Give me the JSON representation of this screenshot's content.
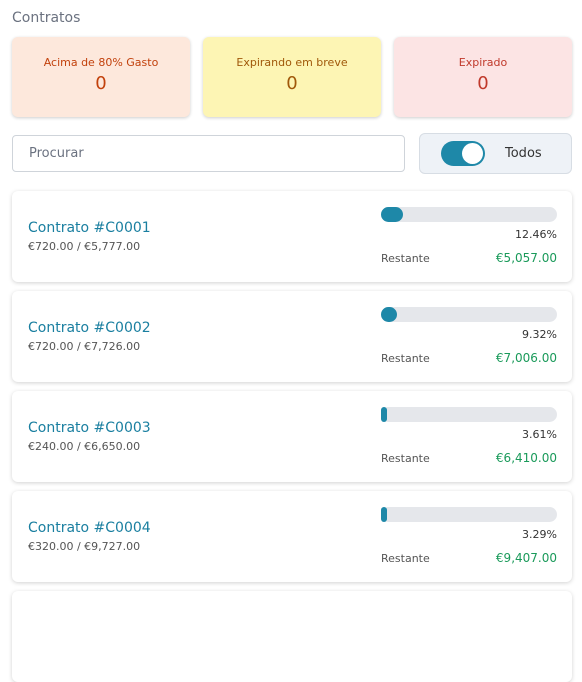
{
  "header": {
    "title": "Contratos"
  },
  "summary": [
    {
      "label": "Acima de 80% Gasto",
      "count": 0
    },
    {
      "label": "Expirando em breve",
      "count": 0
    },
    {
      "label": "Expirado",
      "count": 0
    }
  ],
  "search": {
    "placeholder": "Procurar"
  },
  "filter": {
    "label": "Todos",
    "on": true
  },
  "contracts": [
    {
      "name": "Contrato #C0001",
      "amounts": "€720.00 / €5,777.00",
      "progress": 12.46,
      "progress_label": "12.46%",
      "remaining_label": "Restante",
      "remaining": "€5,057.00"
    },
    {
      "name": "Contrato #C0002",
      "amounts": "€720.00 / €7,726.00",
      "progress": 9.32,
      "progress_label": "9.32%",
      "remaining_label": "Restante",
      "remaining": "€7,006.00"
    },
    {
      "name": "Contrato #C0003",
      "amounts": "€240.00 / €6,650.00",
      "progress": 3.61,
      "progress_label": "3.61%",
      "remaining_label": "Restante",
      "remaining": "€6,410.00"
    },
    {
      "name": "Contrato #C0004",
      "amounts": "€320.00 / €9,727.00",
      "progress": 3.29,
      "progress_label": "3.29%",
      "remaining_label": "Restante",
      "remaining": "€9,407.00"
    }
  ]
}
